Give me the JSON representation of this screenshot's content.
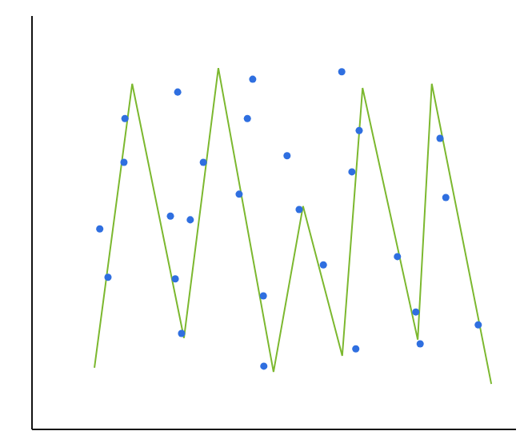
{
  "chart_data": {
    "type": "line",
    "xlim": [
      0,
      100
    ],
    "ylim": [
      0,
      100
    ],
    "grid": false,
    "tick_labels": false,
    "series": [
      {
        "type": "line",
        "color": "#7cb82f",
        "marker": "none",
        "x": [
          12.9,
          20.7,
          31.4,
          38.5,
          49.9,
          56.0,
          64.1,
          68.3,
          79.7,
          82.6,
          94.9
        ],
        "values": [
          14.9,
          83.6,
          22.1,
          87.4,
          13.9,
          54.0,
          17.8,
          82.6,
          21.7,
          83.6,
          11.0
        ]
      },
      {
        "type": "scatter",
        "color": "#2f6fe0",
        "marker": "circle",
        "x": [
          19.2,
          30.1,
          45.6,
          64.0,
          19.0,
          35.4,
          44.5,
          52.7,
          42.8,
          28.6,
          32.7,
          14.0,
          15.7,
          29.6,
          55.2,
          60.2,
          47.8,
          30.9,
          47.9,
          66.9,
          67.6,
          66.1,
          84.3,
          85.5,
          75.5,
          79.3,
          80.2,
          92.2
        ],
        "values": [
          75.2,
          81.6,
          84.7,
          86.5,
          64.6,
          64.6,
          75.2,
          66.2,
          56.9,
          51.6,
          50.7,
          48.5,
          36.8,
          36.4,
          53.2,
          39.8,
          32.3,
          23.2,
          15.3,
          19.5,
          72.3,
          62.3,
          70.4,
          56.1,
          41.8,
          28.4,
          20.7,
          25.3
        ]
      }
    ]
  }
}
